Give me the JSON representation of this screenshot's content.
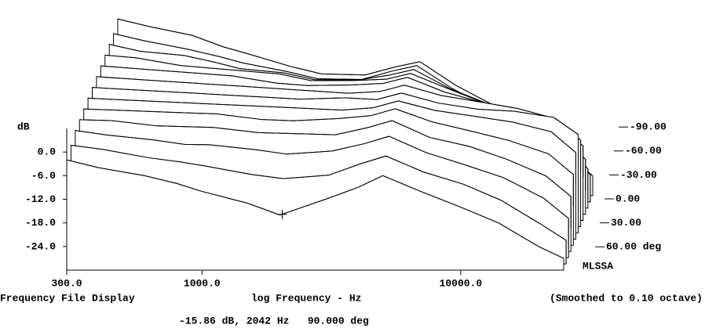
{
  "chart_data": {
    "type": "waterfall",
    "ylabel": "dB",
    "xlabel": "log Frequency - Hz",
    "caption_left": "Frequency File Display",
    "caption_right": "(Smoothed to 0.10 octave)",
    "cursor_readout": "-15.86 dB, 2042 Hz   90.000 deg",
    "cursor": {
      "db": -15.86,
      "freq": 2042,
      "angle": 90
    },
    "brand": "MLSSA",
    "log_x": true,
    "color": "#000000",
    "xlim": [
      300,
      25000
    ],
    "xticks": [
      {
        "value": 300,
        "label": "300.0"
      },
      {
        "value": 1000,
        "label": "1000.0"
      },
      {
        "value": 10000,
        "label": "10000.0"
      }
    ],
    "ylim": [
      -30,
      6
    ],
    "yticks": [
      {
        "value": 0,
        "label": "0.0"
      },
      {
        "value": -6,
        "label": "-6.0"
      },
      {
        "value": -12,
        "label": "-12.0"
      },
      {
        "value": -18,
        "label": "-18.0"
      },
      {
        "value": -24,
        "label": "-24.0"
      }
    ],
    "zticks": [
      {
        "value": -90,
        "label": "-90.00"
      },
      {
        "value": -60,
        "label": "-60.00"
      },
      {
        "value": -30,
        "label": "-30.00"
      },
      {
        "value": 0,
        "label": "0.00"
      },
      {
        "value": 30,
        "label": "30.00"
      },
      {
        "value": 60,
        "label": "60.00 deg"
      }
    ],
    "x": [
      300,
      400,
      600,
      800,
      1000,
      1500,
      2000,
      3000,
      4000,
      5000,
      7000,
      10000,
      14000,
      20000,
      25000
    ],
    "series": [
      {
        "angle": -90,
        "values": [
          1,
          0,
          -1,
          -3,
          -4,
          -6,
          -7,
          -6,
          -3,
          -1,
          -6,
          -10,
          -15,
          -20,
          -25
        ]
      },
      {
        "angle": -75,
        "values": [
          0,
          -1,
          -2,
          -3,
          -4,
          -5,
          -6,
          -5,
          -2,
          0,
          -5,
          -9,
          -13,
          -18,
          -23
        ]
      },
      {
        "angle": -60,
        "values": [
          0,
          -1,
          -1,
          -2,
          -3,
          -3,
          -4,
          -3,
          -1,
          1,
          -3,
          -6,
          -10,
          -14,
          -20
        ]
      },
      {
        "angle": -45,
        "values": [
          0,
          0,
          -1,
          -1,
          -1,
          -1,
          -2,
          -1,
          0,
          2,
          -1,
          -4,
          -7,
          -11,
          -16
        ]
      },
      {
        "angle": -30,
        "values": [
          0,
          0,
          0,
          0,
          0,
          -1,
          -1,
          0,
          1,
          3,
          0,
          -2,
          -4,
          -7,
          -11
        ]
      },
      {
        "angle": -15,
        "values": [
          0,
          0,
          0,
          0,
          0,
          0,
          0,
          0,
          1,
          3,
          1,
          0,
          -1,
          -3,
          -8
        ]
      },
      {
        "angle": 0,
        "values": [
          0,
          0,
          0,
          0,
          0,
          0,
          0,
          1,
          1,
          3,
          1,
          0,
          0,
          -1,
          -5
        ]
      },
      {
        "angle": 15,
        "values": [
          0,
          0,
          0,
          0,
          0,
          0,
          0,
          0,
          1,
          3,
          1,
          0,
          -1,
          -3,
          -8
        ]
      },
      {
        "angle": 30,
        "values": [
          0,
          0,
          0,
          0,
          0,
          -1,
          -1,
          0,
          1,
          3,
          0,
          -2,
          -4,
          -7,
          -12
        ]
      },
      {
        "angle": 45,
        "values": [
          0,
          0,
          -1,
          -1,
          -1,
          -2,
          -2,
          -2,
          0,
          2,
          -2,
          -4,
          -7,
          -11,
          -16
        ]
      },
      {
        "angle": 60,
        "values": [
          0,
          -1,
          -2,
          -3,
          -3,
          -4,
          -5,
          -4,
          -2,
          0,
          -4,
          -7,
          -10,
          -15,
          -20
        ]
      },
      {
        "angle": 75,
        "values": [
          -1,
          -2,
          -4,
          -5,
          -6,
          -8,
          -9,
          -8,
          -5,
          -3,
          -7,
          -10,
          -14,
          -20,
          -24
        ]
      },
      {
        "angle": 90,
        "values": [
          -2,
          -4,
          -6,
          -8,
          -10,
          -13,
          -16,
          -12,
          -9,
          -6,
          -10,
          -14,
          -18,
          -24,
          -27
        ]
      }
    ]
  }
}
